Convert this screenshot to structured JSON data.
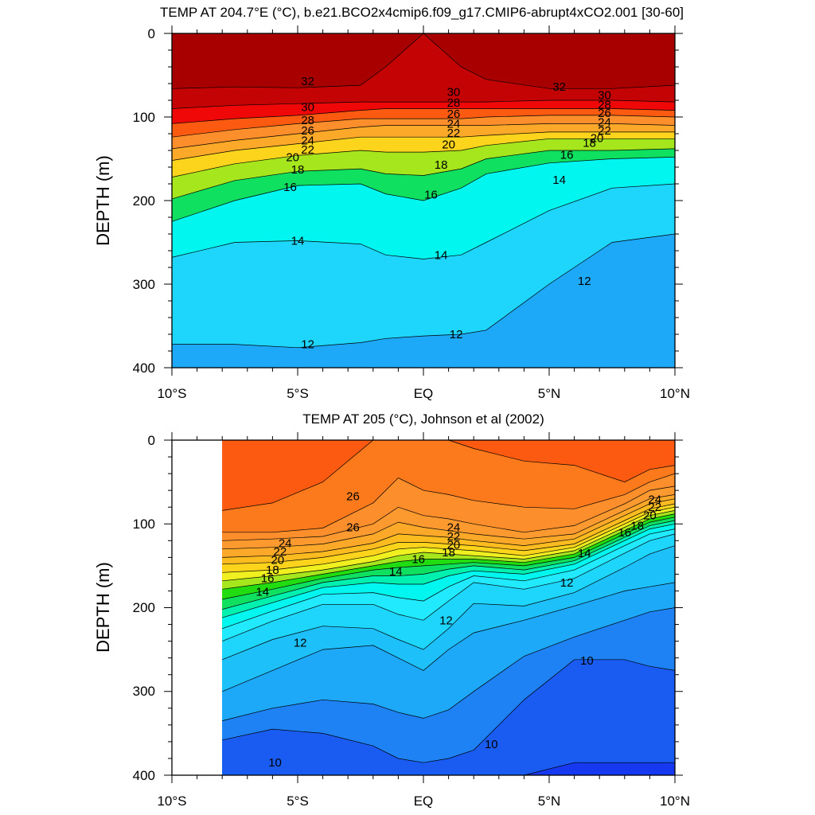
{
  "chart_data": [
    {
      "type": "contour",
      "title": "TEMP AT 204.7°E (°C), b.e21.BCO2x4cmip6.f09_g17.CMIP6-abrupt4xCO2.001 [30-60]",
      "ylabel": "DEPTH (m)",
      "xlabel": "",
      "xlim": [
        -10,
        10
      ],
      "ylim": [
        0,
        400
      ],
      "y_reversed": true,
      "x_ticks": [
        -10,
        -5,
        0,
        5,
        10
      ],
      "x_tick_labels": [
        "10°S",
        "5°S",
        "EQ",
        "5°N",
        "10°N"
      ],
      "y_ticks": [
        0,
        100,
        200,
        300,
        400
      ],
      "y_tick_labels": [
        "0",
        "100",
        "200",
        "300",
        "400"
      ],
      "data_extent": [
        -10,
        10
      ],
      "contour_interval": 1,
      "x": [
        -10,
        -7.5,
        -5,
        -2.5,
        -1.5,
        0,
        1.5,
        2.5,
        5,
        7.5,
        10
      ],
      "isotherms": [
        {
          "t": 32,
          "depth": [
            66,
            64,
            65,
            62,
            40,
            0,
            40,
            55,
            66,
            66,
            62
          ]
        },
        {
          "t": 30,
          "depth": [
            90,
            86,
            84,
            82,
            82,
            82,
            82,
            82,
            80,
            80,
            82
          ]
        },
        {
          "t": 28,
          "depth": [
            108,
            102,
            98,
            92,
            90,
            90,
            90,
            90,
            90,
            90,
            92
          ]
        },
        {
          "t": 26,
          "depth": [
            124,
            115,
            108,
            102,
            102,
            102,
            102,
            100,
            98,
            98,
            100
          ]
        },
        {
          "t": 24,
          "depth": [
            138,
            128,
            120,
            112,
            110,
            110,
            110,
            110,
            108,
            108,
            110
          ]
        },
        {
          "t": 22,
          "depth": [
            152,
            140,
            132,
            124,
            124,
            124,
            124,
            122,
            118,
            118,
            118
          ]
        },
        {
          "t": 20,
          "depth": [
            172,
            156,
            146,
            140,
            142,
            142,
            140,
            134,
            126,
            126,
            126
          ]
        },
        {
          "t": 18,
          "depth": [
            198,
            176,
            165,
            162,
            168,
            170,
            162,
            150,
            140,
            140,
            138
          ]
        },
        {
          "t": 16,
          "depth": [
            225,
            200,
            182,
            180,
            192,
            200,
            185,
            168,
            155,
            150,
            148
          ]
        },
        {
          "t": 14,
          "depth": [
            268,
            250,
            248,
            252,
            265,
            270,
            265,
            250,
            212,
            185,
            180
          ]
        },
        {
          "t": 12,
          "depth": [
            372,
            372,
            376,
            370,
            365,
            362,
            360,
            355,
            300,
            250,
            240
          ]
        }
      ],
      "contour_labels": [
        {
          "text": "32",
          "x": -4.6,
          "y": 57
        },
        {
          "text": "32",
          "x": 5.4,
          "y": 64
        },
        {
          "text": "30",
          "x": -4.6,
          "y": 88
        },
        {
          "text": "28",
          "x": -4.6,
          "y": 104
        },
        {
          "text": "26",
          "x": -4.6,
          "y": 116
        },
        {
          "text": "24",
          "x": -4.6,
          "y": 128
        },
        {
          "text": "22",
          "x": -4.6,
          "y": 139
        },
        {
          "text": "20",
          "x": -5.2,
          "y": 148
        },
        {
          "text": "18",
          "x": -5.0,
          "y": 163
        },
        {
          "text": "16",
          "x": -5.3,
          "y": 184
        },
        {
          "text": "14",
          "x": -5.0,
          "y": 248
        },
        {
          "text": "12",
          "x": -4.6,
          "y": 372
        },
        {
          "text": "30",
          "x": 1.2,
          "y": 70
        },
        {
          "text": "28",
          "x": 1.2,
          "y": 83
        },
        {
          "text": "26",
          "x": 1.2,
          "y": 96
        },
        {
          "text": "24",
          "x": 1.2,
          "y": 108
        },
        {
          "text": "22",
          "x": 1.2,
          "y": 119
        },
        {
          "text": "20",
          "x": 1.0,
          "y": 133
        },
        {
          "text": "18",
          "x": 0.7,
          "y": 157
        },
        {
          "text": "16",
          "x": 0.3,
          "y": 193
        },
        {
          "text": "14",
          "x": 0.7,
          "y": 265
        },
        {
          "text": "12",
          "x": 1.3,
          "y": 360
        },
        {
          "text": "30",
          "x": 7.2,
          "y": 74
        },
        {
          "text": "28",
          "x": 7.2,
          "y": 85
        },
        {
          "text": "26",
          "x": 7.2,
          "y": 95
        },
        {
          "text": "24",
          "x": 7.2,
          "y": 106
        },
        {
          "text": "22",
          "x": 7.2,
          "y": 116
        },
        {
          "text": "20",
          "x": 6.9,
          "y": 125
        },
        {
          "text": "18",
          "x": 6.6,
          "y": 131
        },
        {
          "text": "16",
          "x": 5.7,
          "y": 145
        },
        {
          "text": "14",
          "x": 5.4,
          "y": 175
        },
        {
          "text": "12",
          "x": 6.4,
          "y": 296
        }
      ]
    },
    {
      "type": "contour",
      "title": "TEMP AT 205 (°C), Johnson et al (2002)",
      "ylabel": "DEPTH (m)",
      "xlabel": "",
      "xlim": [
        -10,
        10
      ],
      "ylim": [
        0,
        400
      ],
      "y_reversed": true,
      "x_ticks": [
        -10,
        -5,
        0,
        5,
        10
      ],
      "x_tick_labels": [
        "10°S",
        "5°S",
        "EQ",
        "5°N",
        "10°N"
      ],
      "y_ticks": [
        0,
        100,
        200,
        300,
        400
      ],
      "y_tick_labels": [
        "0",
        "100",
        "200",
        "300",
        "400"
      ],
      "data_extent": [
        -8,
        10
      ],
      "contour_interval": 1,
      "x": [
        -8,
        -6,
        -4,
        -2,
        -1,
        0,
        1,
        2,
        4,
        6,
        8,
        9,
        10
      ],
      "isotherms": [
        {
          "t": 28,
          "depth": [
            0,
            0,
            0,
            0,
            0,
            0,
            0,
            0,
            0,
            0,
            0,
            0,
            0
          ]
        },
        {
          "t": 27,
          "depth": [
            84,
            75,
            50,
            0,
            0,
            0,
            0,
            10,
            25,
            30,
            50,
            35,
            30
          ]
        },
        {
          "t": 26,
          "depth": [
            110,
            110,
            105,
            75,
            45,
            60,
            65,
            72,
            80,
            82,
            65,
            50,
            40
          ]
        },
        {
          "t": 25,
          "depth": [
            120,
            118,
            115,
            100,
            80,
            90,
            94,
            100,
            110,
            102,
            76,
            60,
            55
          ]
        },
        {
          "t": 24,
          "depth": [
            130,
            128,
            124,
            112,
            98,
            104,
            108,
            112,
            118,
            112,
            84,
            70,
            65
          ]
        },
        {
          "t": 23,
          "depth": [
            140,
            138,
            133,
            123,
            112,
            114,
            116,
            120,
            126,
            118,
            90,
            76,
            70
          ]
        },
        {
          "t": 22,
          "depth": [
            148,
            146,
            140,
            130,
            122,
            122,
            124,
            126,
            132,
            124,
            96,
            82,
            76
          ]
        },
        {
          "t": 21,
          "depth": [
            158,
            155,
            148,
            138,
            130,
            128,
            130,
            132,
            138,
            128,
            100,
            86,
            80
          ]
        },
        {
          "t": 20,
          "depth": [
            168,
            162,
            155,
            145,
            138,
            134,
            136,
            138,
            142,
            132,
            104,
            90,
            84
          ]
        },
        {
          "t": 19,
          "depth": [
            178,
            170,
            160,
            150,
            145,
            142,
            142,
            142,
            146,
            136,
            108,
            94,
            88
          ]
        },
        {
          "t": 18,
          "depth": [
            190,
            178,
            165,
            155,
            152,
            150,
            148,
            146,
            150,
            140,
            112,
            98,
            92
          ]
        },
        {
          "t": 17,
          "depth": [
            202,
            186,
            170,
            162,
            162,
            160,
            154,
            150,
            155,
            144,
            116,
            102,
            96
          ]
        },
        {
          "t": 16,
          "depth": [
            212,
            194,
            176,
            170,
            172,
            172,
            162,
            156,
            160,
            148,
            120,
            106,
            100
          ]
        },
        {
          "t": 15,
          "depth": [
            225,
            204,
            184,
            182,
            188,
            192,
            175,
            162,
            168,
            155,
            126,
            112,
            106
          ]
        },
        {
          "t": 14,
          "depth": [
            240,
            216,
            196,
            196,
            208,
            215,
            192,
            170,
            178,
            165,
            135,
            120,
            112
          ]
        },
        {
          "t": 13,
          "depth": [
            262,
            238,
            222,
            225,
            238,
            250,
            225,
            195,
            198,
            182,
            152,
            136,
            126
          ]
        },
        {
          "t": 12,
          "depth": [
            300,
            275,
            250,
            245,
            260,
            275,
            250,
            230,
            215,
            198,
            180,
            175,
            170
          ]
        },
        {
          "t": 11,
          "depth": [
            335,
            320,
            310,
            315,
            325,
            332,
            322,
            300,
            258,
            235,
            215,
            205,
            200
          ]
        },
        {
          "t": 10,
          "depth": [
            358,
            345,
            350,
            365,
            380,
            385,
            380,
            370,
            310,
            262,
            262,
            270,
            275
          ]
        },
        {
          "t": 9,
          "depth": [
            400,
            400,
            400,
            400,
            400,
            400,
            400,
            400,
            400,
            385,
            385,
            385,
            385
          ]
        }
      ],
      "contour_labels": [
        {
          "text": "26",
          "x": -2.8,
          "y": 67
        },
        {
          "text": "26",
          "x": -2.8,
          "y": 104
        },
        {
          "text": "24",
          "x": -5.5,
          "y": 123
        },
        {
          "text": "22",
          "x": -5.7,
          "y": 133
        },
        {
          "text": "20",
          "x": -5.8,
          "y": 143
        },
        {
          "text": "18",
          "x": -6.0,
          "y": 155
        },
        {
          "text": "16",
          "x": -6.2,
          "y": 165
        },
        {
          "text": "14",
          "x": -6.4,
          "y": 181
        },
        {
          "text": "12",
          "x": -4.9,
          "y": 242
        },
        {
          "text": "10",
          "x": -5.9,
          "y": 385
        },
        {
          "text": "24",
          "x": 1.2,
          "y": 104
        },
        {
          "text": "22",
          "x": 1.2,
          "y": 115
        },
        {
          "text": "20",
          "x": 1.2,
          "y": 125
        },
        {
          "text": "18",
          "x": 1.0,
          "y": 134
        },
        {
          "text": "16",
          "x": -0.2,
          "y": 142
        },
        {
          "text": "14",
          "x": -1.1,
          "y": 157
        },
        {
          "text": "12",
          "x": 0.9,
          "y": 215
        },
        {
          "text": "10",
          "x": 2.7,
          "y": 363
        },
        {
          "text": "24",
          "x": 9.2,
          "y": 71
        },
        {
          "text": "22",
          "x": 9.2,
          "y": 80
        },
        {
          "text": "20",
          "x": 9.0,
          "y": 90
        },
        {
          "text": "18",
          "x": 8.5,
          "y": 102
        },
        {
          "text": "16",
          "x": 8.0,
          "y": 110
        },
        {
          "text": "14",
          "x": 6.4,
          "y": 135
        },
        {
          "text": "12",
          "x": 5.7,
          "y": 170
        },
        {
          "text": "10",
          "x": 6.5,
          "y": 263
        }
      ]
    }
  ]
}
